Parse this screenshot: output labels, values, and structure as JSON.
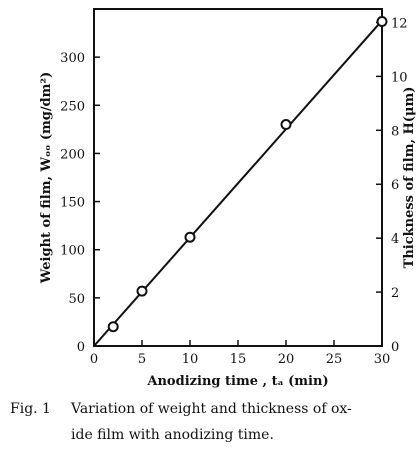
{
  "chart_data": {
    "type": "line",
    "xlabel": "Anodizing time , tₐ (min)",
    "ylabel_left": "Weight of film, Wₒₒ (mg/dm²)",
    "ylabel_right": "Thickness of film, H(μm)",
    "xlim": [
      0,
      30
    ],
    "ylim_left": [
      0,
      350
    ],
    "ylim_right": [
      0,
      12.5
    ],
    "x_ticks": [
      0,
      5,
      10,
      15,
      20,
      25,
      30
    ],
    "x_tick_labels": [
      "0",
      "5",
      "10",
      "15",
      "20",
      "25",
      "30"
    ],
    "y_left_ticks": [
      0,
      50,
      100,
      150,
      200,
      250,
      300
    ],
    "y_left_tick_labels": [
      "0",
      "50",
      "100",
      "150",
      "200",
      "250",
      "300"
    ],
    "y_right_ticks": [
      0,
      2,
      4,
      6,
      8,
      10,
      12
    ],
    "y_right_tick_labels": [
      "0",
      "2",
      "4",
      "6",
      "8",
      "10",
      "12"
    ],
    "grid": false,
    "fit_line": {
      "x": [
        0,
        30
      ],
      "y": [
        0,
        338
      ]
    },
    "series": [
      {
        "values": [
          {
            "x": 2,
            "y": 20
          },
          {
            "x": 5,
            "y": 57
          },
          {
            "x": 10,
            "y": 113
          },
          {
            "x": 20,
            "y": 230
          },
          {
            "x": 30,
            "y": 337
          }
        ]
      }
    ],
    "colors": {
      "ink": "#111111",
      "background": "#ffffff"
    }
  },
  "caption": {
    "label": "Fig. 1",
    "line1": "Variation of weight and thickness of ox-",
    "line2": "ide film with anodizing time."
  }
}
